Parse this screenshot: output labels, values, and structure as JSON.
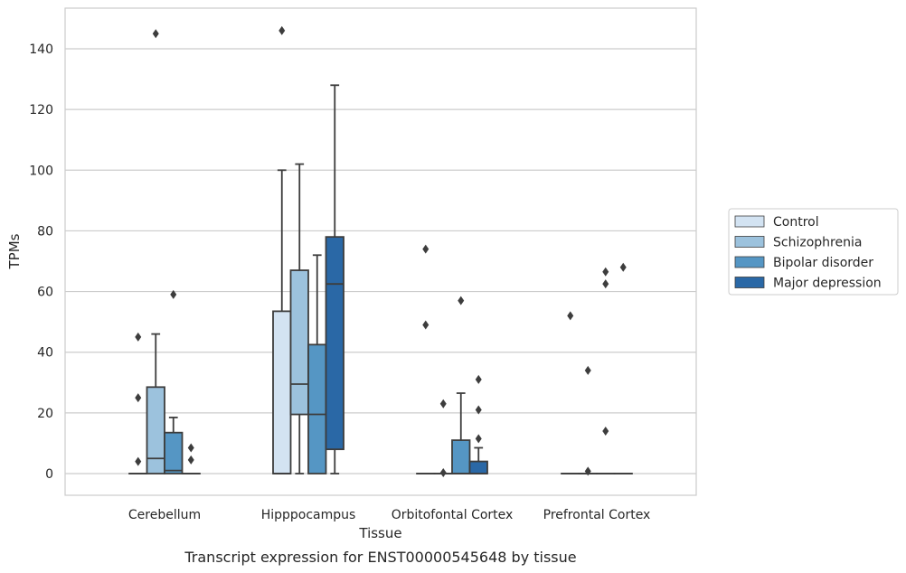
{
  "chart_data": {
    "type": "box",
    "title": "",
    "caption": "Transcript expression for ENST00000545648 by tissue",
    "xlabel": "Tissue",
    "ylabel": "TPMs",
    "ylim": [
      -7,
      154
    ],
    "yticks": [
      0,
      20,
      40,
      60,
      80,
      100,
      120,
      140
    ],
    "grid": "horizontal",
    "legend_position": "right",
    "categories": [
      "Cerebellum",
      "Hipppocampus",
      "Orbitofontal Cortex",
      "Prefrontal Cortex"
    ],
    "series": [
      {
        "name": "Control",
        "color": "#d3e3f2",
        "boxes": [
          {
            "min": 0,
            "q1": 0,
            "median": 0,
            "q3": 0,
            "max": 0,
            "outliers": [
              4,
              25,
              45
            ]
          },
          {
            "min": 0,
            "q1": 0,
            "median": 0,
            "q3": 53.5,
            "max": 100,
            "outliers": [
              146
            ]
          },
          {
            "min": 0,
            "q1": 0,
            "median": 0,
            "q3": 0,
            "max": 0,
            "outliers": [
              49,
              74
            ]
          },
          {
            "min": 0,
            "q1": 0,
            "median": 0,
            "q3": 0,
            "max": 0,
            "outliers": [
              52
            ]
          }
        ]
      },
      {
        "name": "Schizophrenia",
        "color": "#9cc2dd",
        "boxes": [
          {
            "min": 0,
            "q1": 0,
            "median": 5,
            "q3": 28.5,
            "max": 46,
            "outliers": [
              145
            ]
          },
          {
            "min": 0,
            "q1": 19.5,
            "median": 29.5,
            "q3": 67,
            "max": 102,
            "outliers": []
          },
          {
            "min": 0,
            "q1": 0,
            "median": 0,
            "q3": 0,
            "max": 0,
            "outliers": [
              0.3,
              23
            ]
          },
          {
            "min": 0,
            "q1": 0,
            "median": 0,
            "q3": 0,
            "max": 0,
            "outliers": [
              0.8,
              34
            ]
          }
        ]
      },
      {
        "name": "Bipolar disorder",
        "color": "#5596c4",
        "boxes": [
          {
            "min": 0,
            "q1": 0,
            "median": 1,
            "q3": 13.5,
            "max": 18.5,
            "outliers": [
              59
            ]
          },
          {
            "min": 0,
            "q1": 0,
            "median": 19.5,
            "q3": 42.5,
            "max": 72,
            "outliers": []
          },
          {
            "min": 0,
            "q1": 0,
            "median": 0,
            "q3": 11,
            "max": 26.5,
            "outliers": [
              57
            ]
          },
          {
            "min": 0,
            "q1": 0,
            "median": 0,
            "q3": 0,
            "max": 0,
            "outliers": [
              14,
              62.5,
              66.5
            ]
          }
        ]
      },
      {
        "name": "Major depression",
        "color": "#2a68a6",
        "boxes": [
          {
            "min": 0,
            "q1": 0,
            "median": 0,
            "q3": 0,
            "max": 0,
            "outliers": [
              4.5,
              8.5
            ]
          },
          {
            "min": 0,
            "q1": 8,
            "median": 62.5,
            "q3": 78,
            "max": 128,
            "outliers": []
          },
          {
            "min": 0,
            "q1": 0,
            "median": 0,
            "q3": 4,
            "max": 8.5,
            "outliers": [
              11.5,
              21,
              31
            ]
          },
          {
            "min": 0,
            "q1": 0,
            "median": 0,
            "q3": 0,
            "max": 0,
            "outliers": [
              68
            ]
          }
        ]
      }
    ]
  }
}
